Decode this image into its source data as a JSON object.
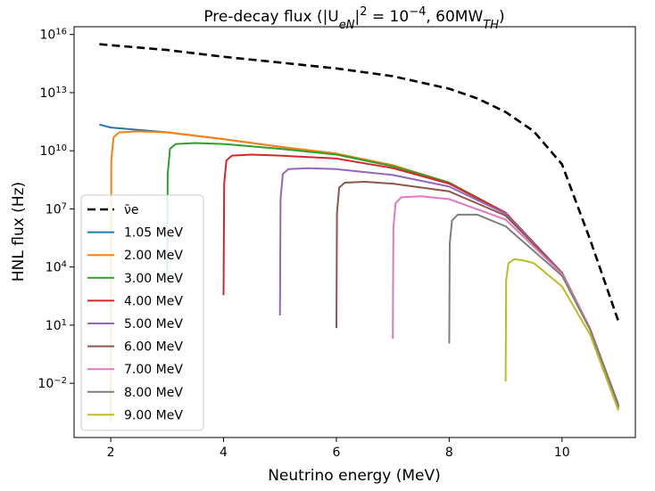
{
  "chart_data": {
    "type": "line",
    "title_html": "Pre-decay flux (|U<tspan baseline-shift='sub' font-size='13' font-style='italic'>eN</tspan>|<tspan baseline-shift='super' font-size='13'>2</tspan> = 10<tspan baseline-shift='super' font-size='13'>−4</tspan>, 60MW<tspan baseline-shift='sub' font-size='13' font-style='italic'>TH</tspan>)",
    "xlabel": "Neutrino energy (MeV)",
    "ylabel": "HNL flux (Hz)",
    "xlim": [
      1.35,
      11.3
    ],
    "ylim_log10": [
      -4.8,
      16.4
    ],
    "yscale": "log",
    "x_ticks": [
      2,
      4,
      6,
      8,
      10
    ],
    "y_ticks": [
      {
        "exp": 16,
        "label_base": "10",
        "label_exp": "16"
      },
      {
        "exp": 13,
        "label_base": "10",
        "label_exp": "13"
      },
      {
        "exp": 10,
        "label_base": "10",
        "label_exp": "10"
      },
      {
        "exp": 7,
        "label_base": "10",
        "label_exp": "7"
      },
      {
        "exp": 4,
        "label_base": "10",
        "label_exp": "4"
      },
      {
        "exp": 1,
        "label_base": "10",
        "label_exp": "1"
      },
      {
        "exp": -2,
        "label_base": "10",
        "label_exp": "−2"
      }
    ],
    "legend_position": "lower-left",
    "series": [
      {
        "name": "ν̄e",
        "color": "#000000",
        "dashed": true,
        "threshold": null,
        "points": [
          [
            1.8,
            15.5
          ],
          [
            2,
            15.45
          ],
          [
            3,
            15.2
          ],
          [
            4,
            14.85
          ],
          [
            5,
            14.55
          ],
          [
            6,
            14.25
          ],
          [
            7,
            13.85
          ],
          [
            8,
            13.2
          ],
          [
            8.5,
            12.7
          ],
          [
            9,
            12.0
          ],
          [
            9.5,
            11.0
          ],
          [
            10,
            9.3
          ],
          [
            10.5,
            5.4
          ],
          [
            11,
            1.2
          ]
        ]
      },
      {
        "name": "1.05 MeV",
        "color": "#1f77b4",
        "dashed": false,
        "threshold": 1.05,
        "points": [
          [
            1.8,
            11.35
          ],
          [
            2,
            11.2
          ],
          [
            3,
            10.95
          ],
          [
            4,
            10.6
          ],
          [
            5,
            10.2
          ],
          [
            6,
            9.85
          ],
          [
            7,
            9.25
          ],
          [
            8,
            8.35
          ],
          [
            9,
            6.8
          ],
          [
            10,
            3.7
          ],
          [
            10.5,
            0.8
          ],
          [
            11,
            -3.1
          ]
        ]
      },
      {
        "name": "2.00 MeV",
        "color": "#ff7f0e",
        "dashed": false,
        "threshold": 2.0,
        "points": [
          [
            2,
            -4.0
          ],
          [
            2.01,
            9.5
          ],
          [
            2.05,
            10.7
          ],
          [
            2.15,
            10.95
          ],
          [
            2.5,
            11.0
          ],
          [
            3,
            10.95
          ],
          [
            4,
            10.6
          ],
          [
            5,
            10.2
          ],
          [
            6,
            9.85
          ],
          [
            7,
            9.25
          ],
          [
            8,
            8.35
          ],
          [
            9,
            6.8
          ],
          [
            10,
            3.7
          ],
          [
            10.5,
            0.8
          ],
          [
            11,
            -3.15
          ]
        ]
      },
      {
        "name": "3.00 MeV",
        "color": "#2ca02c",
        "dashed": false,
        "threshold": 3.0,
        "points": [
          [
            3,
            3.2
          ],
          [
            3.01,
            8.8
          ],
          [
            3.05,
            10.1
          ],
          [
            3.15,
            10.35
          ],
          [
            3.5,
            10.4
          ],
          [
            4,
            10.35
          ],
          [
            5,
            10.1
          ],
          [
            6,
            9.8
          ],
          [
            7,
            9.2
          ],
          [
            8,
            8.35
          ],
          [
            9,
            6.8
          ],
          [
            10,
            3.7
          ],
          [
            10.5,
            0.8
          ],
          [
            11,
            -3.2
          ]
        ]
      },
      {
        "name": "4.00 MeV",
        "color": "#d62728",
        "dashed": false,
        "threshold": 4.0,
        "points": [
          [
            4,
            2.55
          ],
          [
            4.01,
            8.3
          ],
          [
            4.05,
            9.5
          ],
          [
            4.15,
            9.75
          ],
          [
            4.5,
            9.8
          ],
          [
            5,
            9.75
          ],
          [
            6,
            9.6
          ],
          [
            7,
            9.1
          ],
          [
            8,
            8.3
          ],
          [
            9,
            6.8
          ],
          [
            10,
            3.7
          ],
          [
            10.5,
            0.8
          ],
          [
            11,
            -3.2
          ]
        ]
      },
      {
        "name": "5.00 MeV",
        "color": "#9467bd",
        "dashed": false,
        "threshold": 5.0,
        "points": [
          [
            5,
            1.5
          ],
          [
            5.01,
            7.5
          ],
          [
            5.05,
            8.8
          ],
          [
            5.15,
            9.05
          ],
          [
            5.5,
            9.1
          ],
          [
            6,
            9.05
          ],
          [
            7,
            8.75
          ],
          [
            8,
            8.15
          ],
          [
            9,
            6.75
          ],
          [
            10,
            3.7
          ],
          [
            10.5,
            0.8
          ],
          [
            11,
            -3.2
          ]
        ]
      },
      {
        "name": "6.00 MeV",
        "color": "#8c564b",
        "dashed": false,
        "threshold": 6.0,
        "points": [
          [
            6,
            0.85
          ],
          [
            6.01,
            6.8
          ],
          [
            6.05,
            8.1
          ],
          [
            6.15,
            8.35
          ],
          [
            6.5,
            8.4
          ],
          [
            7,
            8.3
          ],
          [
            8,
            7.9
          ],
          [
            9,
            6.65
          ],
          [
            10,
            3.7
          ],
          [
            10.5,
            0.8
          ],
          [
            11,
            -3.25
          ]
        ]
      },
      {
        "name": "7.00 MeV",
        "color": "#e377c2",
        "dashed": false,
        "threshold": 7.0,
        "points": [
          [
            7,
            0.3
          ],
          [
            7.01,
            6.0
          ],
          [
            7.05,
            7.3
          ],
          [
            7.15,
            7.6
          ],
          [
            7.5,
            7.65
          ],
          [
            8,
            7.5
          ],
          [
            9,
            6.45
          ],
          [
            10,
            3.65
          ],
          [
            10.5,
            0.8
          ],
          [
            11,
            -3.3
          ]
        ]
      },
      {
        "name": "8.00 MeV",
        "color": "#7f7f7f",
        "dashed": false,
        "threshold": 8.0,
        "points": [
          [
            8,
            0.05
          ],
          [
            8.01,
            5.2
          ],
          [
            8.05,
            6.4
          ],
          [
            8.15,
            6.7
          ],
          [
            8.5,
            6.7
          ],
          [
            9,
            6.1
          ],
          [
            10,
            3.55
          ],
          [
            10.5,
            0.75
          ],
          [
            11,
            -3.3
          ]
        ]
      },
      {
        "name": "9.00 MeV",
        "color": "#bcbd22",
        "dashed": false,
        "threshold": 9.0,
        "points": [
          [
            9,
            -1.9
          ],
          [
            9.01,
            3.3
          ],
          [
            9.05,
            4.2
          ],
          [
            9.15,
            4.4
          ],
          [
            9.3,
            4.35
          ],
          [
            9.5,
            4.2
          ],
          [
            10,
            3.0
          ],
          [
            10.5,
            0.5
          ],
          [
            11,
            -3.4
          ]
        ]
      }
    ]
  }
}
